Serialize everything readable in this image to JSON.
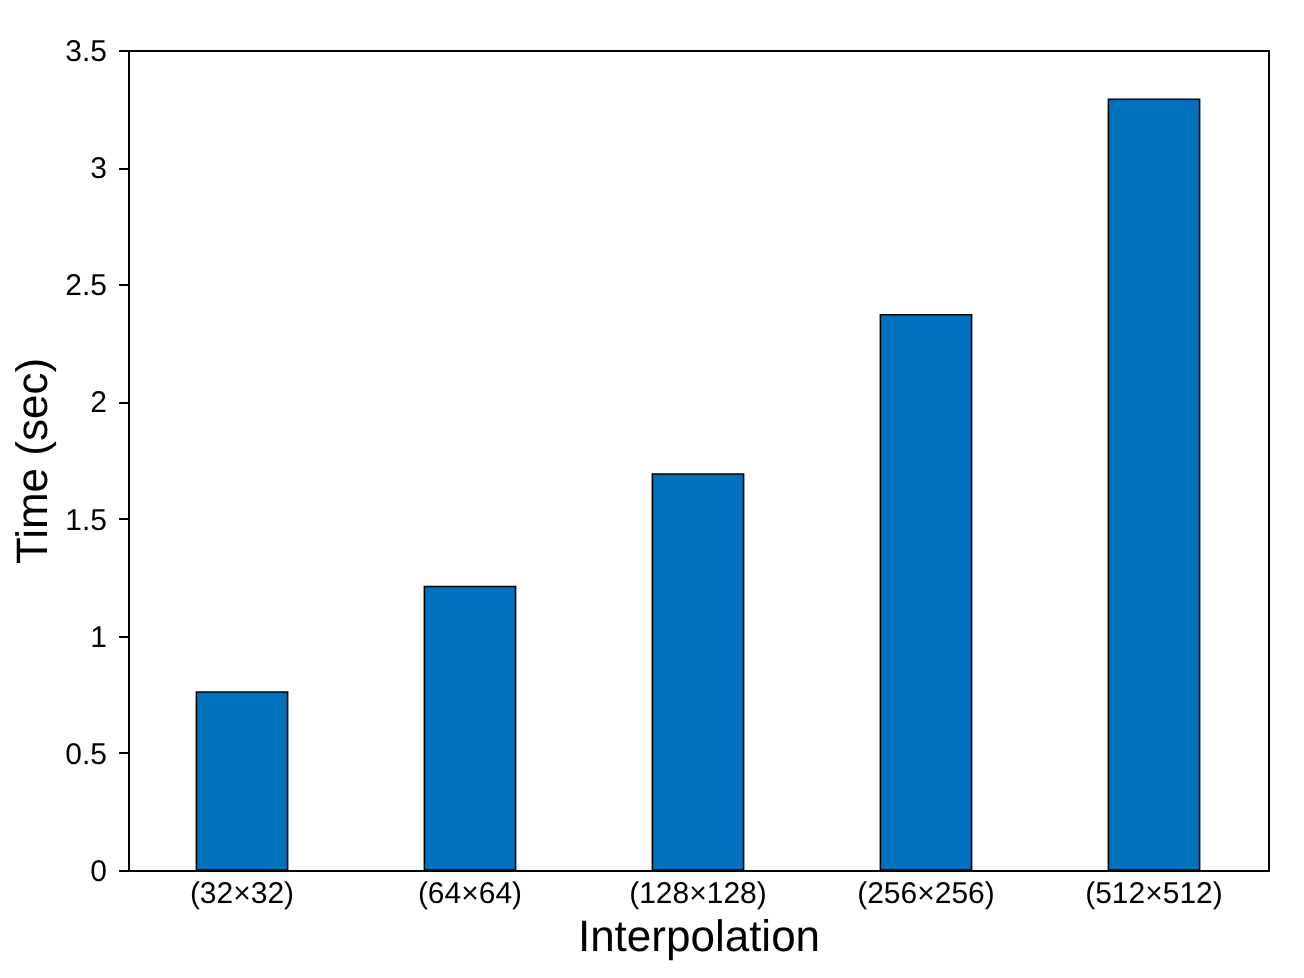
{
  "chart_data": {
    "type": "bar",
    "xlabel": "Interpolation",
    "ylabel": "Time (sec)",
    "categories": [
      "(32×32)",
      "(64×64)",
      "(128×128)",
      "(256×256)",
      "(512×512)"
    ],
    "values": [
      0.76,
      1.21,
      1.69,
      2.37,
      3.29
    ],
    "color": "#0072bd",
    "ylim": [
      0,
      3.5
    ],
    "yticks": [
      0,
      0.5,
      1,
      1.5,
      2,
      2.5,
      3,
      3.5
    ],
    "grid": false
  }
}
